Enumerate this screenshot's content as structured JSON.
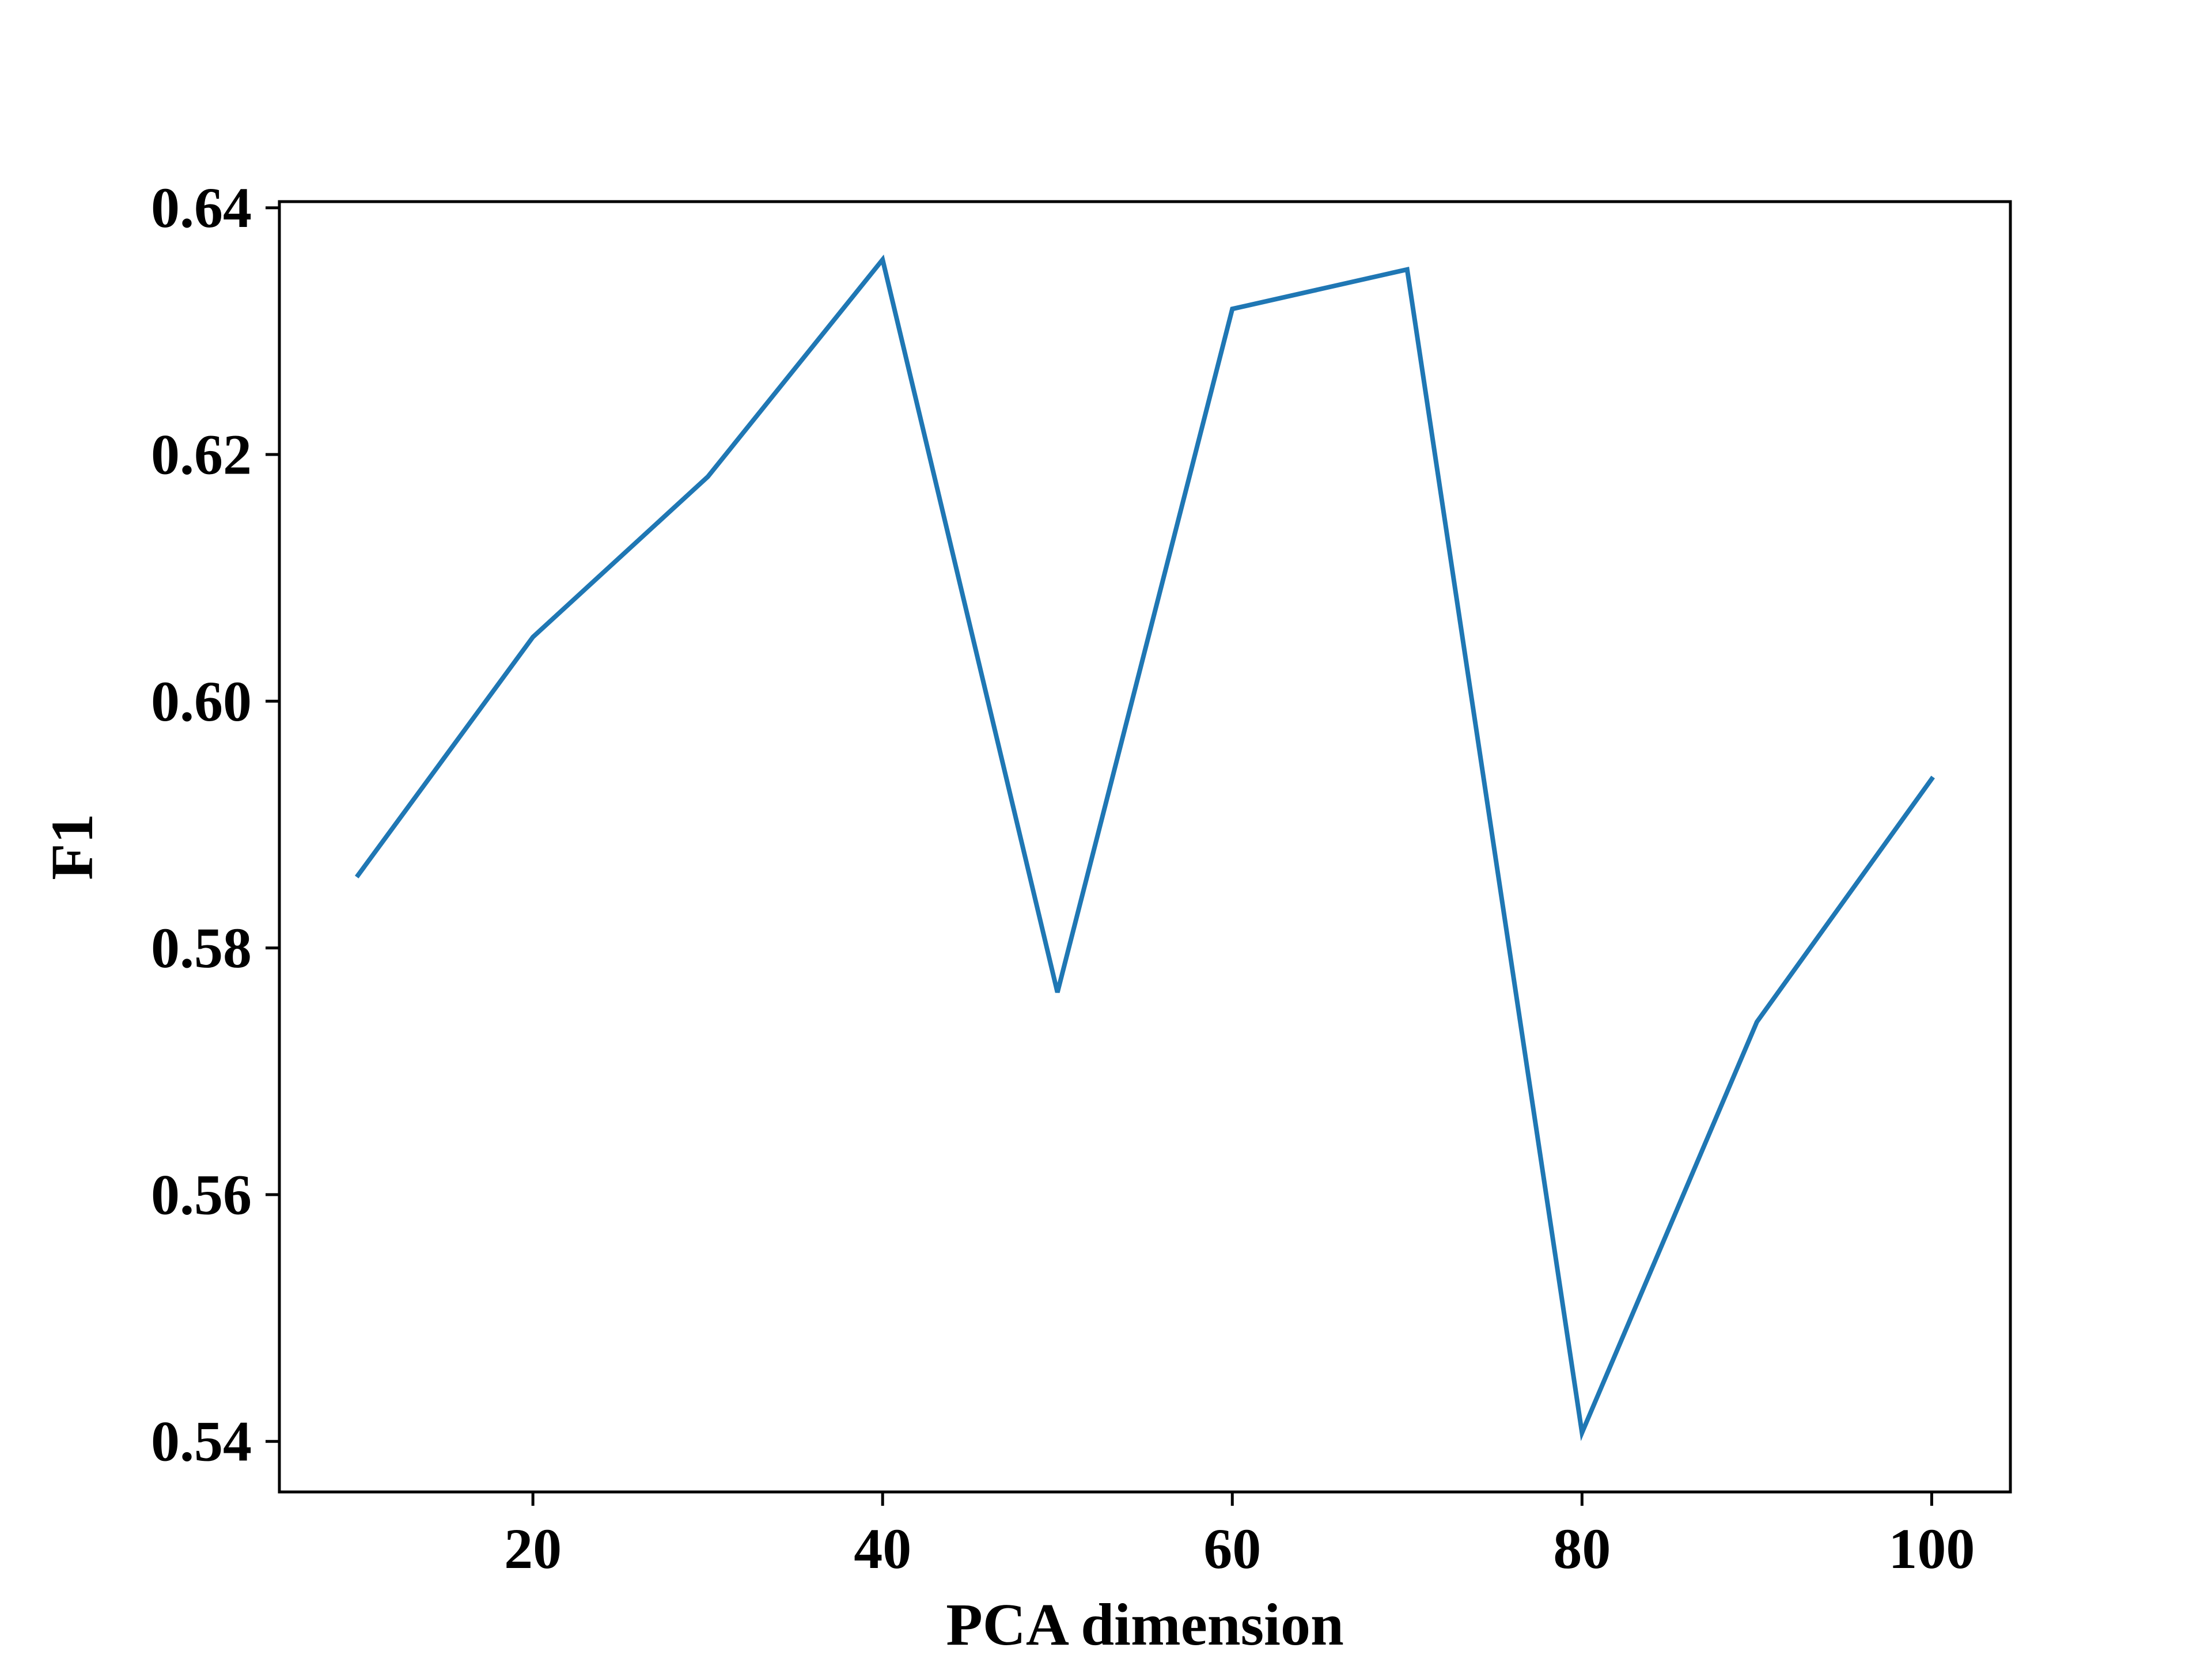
{
  "chart_data": {
    "type": "line",
    "title": "",
    "xlabel": "PCA dimension",
    "ylabel": "F1",
    "xlim": [
      5.5,
      104.5
    ],
    "ylim": [
      0.5359,
      0.6405
    ],
    "x_ticks": [
      20,
      40,
      60,
      80,
      100
    ],
    "x_tick_labels": [
      "20",
      "40",
      "60",
      "80",
      "100"
    ],
    "y_ticks": [
      0.54,
      0.56,
      0.58,
      0.6,
      0.62,
      0.64
    ],
    "y_tick_labels": [
      "0.54",
      "0.56",
      "0.58",
      "0.60",
      "0.62",
      "0.64"
    ],
    "grid": false,
    "legend": "none",
    "series": [
      {
        "color": "#1f77b4",
        "x": [
          10,
          20,
          30,
          40,
          50,
          60,
          70,
          80,
          90,
          100
        ],
        "y": [
          0.5859,
          0.6052,
          0.6182,
          0.6358,
          0.5764,
          0.6318,
          0.635,
          0.5407,
          0.574,
          0.5937
        ]
      }
    ]
  }
}
